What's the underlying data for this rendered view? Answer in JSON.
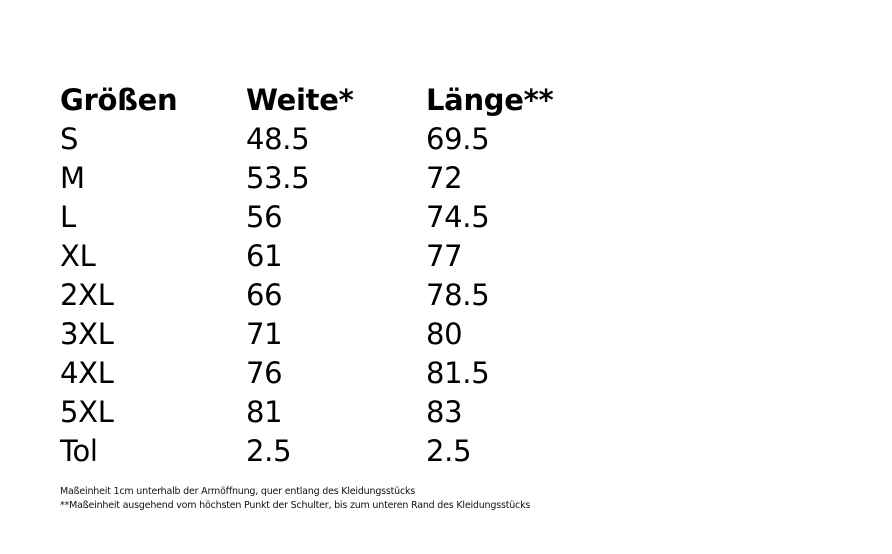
{
  "table": {
    "headers": [
      "Größen",
      "Weite*",
      "Länge**"
    ],
    "rows": [
      [
        "S",
        "48.5",
        "69.5"
      ],
      [
        "M",
        "53.5",
        "72"
      ],
      [
        "L",
        "56",
        "74.5"
      ],
      [
        "XL",
        "61",
        "77"
      ],
      [
        "2XL",
        "66",
        "78.5"
      ],
      [
        "3XL",
        "71",
        "80"
      ],
      [
        "4XL",
        "76",
        "81.5"
      ],
      [
        "5XL",
        "81",
        "83"
      ],
      [
        "Tol",
        "2.5",
        "2.5"
      ]
    ]
  },
  "footnotes": [
    "Maßeinheit 1cm unterhalb der Armöffnung, quer entlang des Kleidungsstücks",
    "**Maßeinheit ausgehend vom höchsten Punkt der Schulter, bis zum unteren Rand des Kleidungsstücks"
  ]
}
